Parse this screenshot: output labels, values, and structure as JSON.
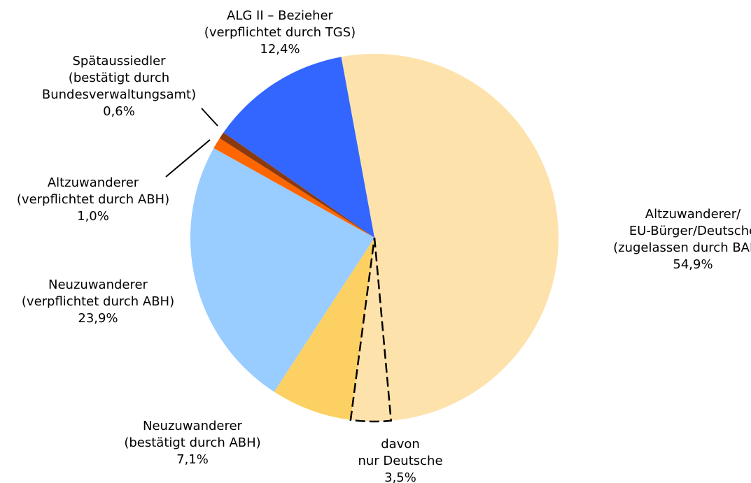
{
  "chart_data": {
    "type": "pie",
    "labels": [
      [
        "Altzuwanderer/",
        "EU-Bürger/Deutsche",
        "(zugelassen durch BAMF)"
      ],
      [
        "Neuzuwanderer",
        "(bestätigt durch ABH)"
      ],
      [
        "Neuzuwanderer",
        "(verpflichtet durch ABH)"
      ],
      [
        "Altzuwanderer",
        "(verpflichtet durch ABH)"
      ],
      [
        "Spätaussiedler",
        "(bestätigt durch",
        "Bundesverwaltungsamt)"
      ],
      [
        "ALG II – Bezieher",
        "(verpflichtet durch TGS)"
      ]
    ],
    "values": [
      54.9,
      7.1,
      23.9,
      1.0,
      0.6,
      12.4
    ],
    "value_labels": [
      "54,9%",
      "7,1%",
      "23,9%",
      "1,0%",
      "0,6%",
      "12,4%"
    ],
    "colors": [
      "#fde2ac",
      "#fcd062",
      "#99ccff",
      "#ff6600",
      "#8b3a0f",
      "#3366ff"
    ],
    "sub_slice": {
      "label": [
        "davon",
        "nur Deutsche"
      ],
      "value": 3.5,
      "value_label": "3,5%"
    }
  }
}
